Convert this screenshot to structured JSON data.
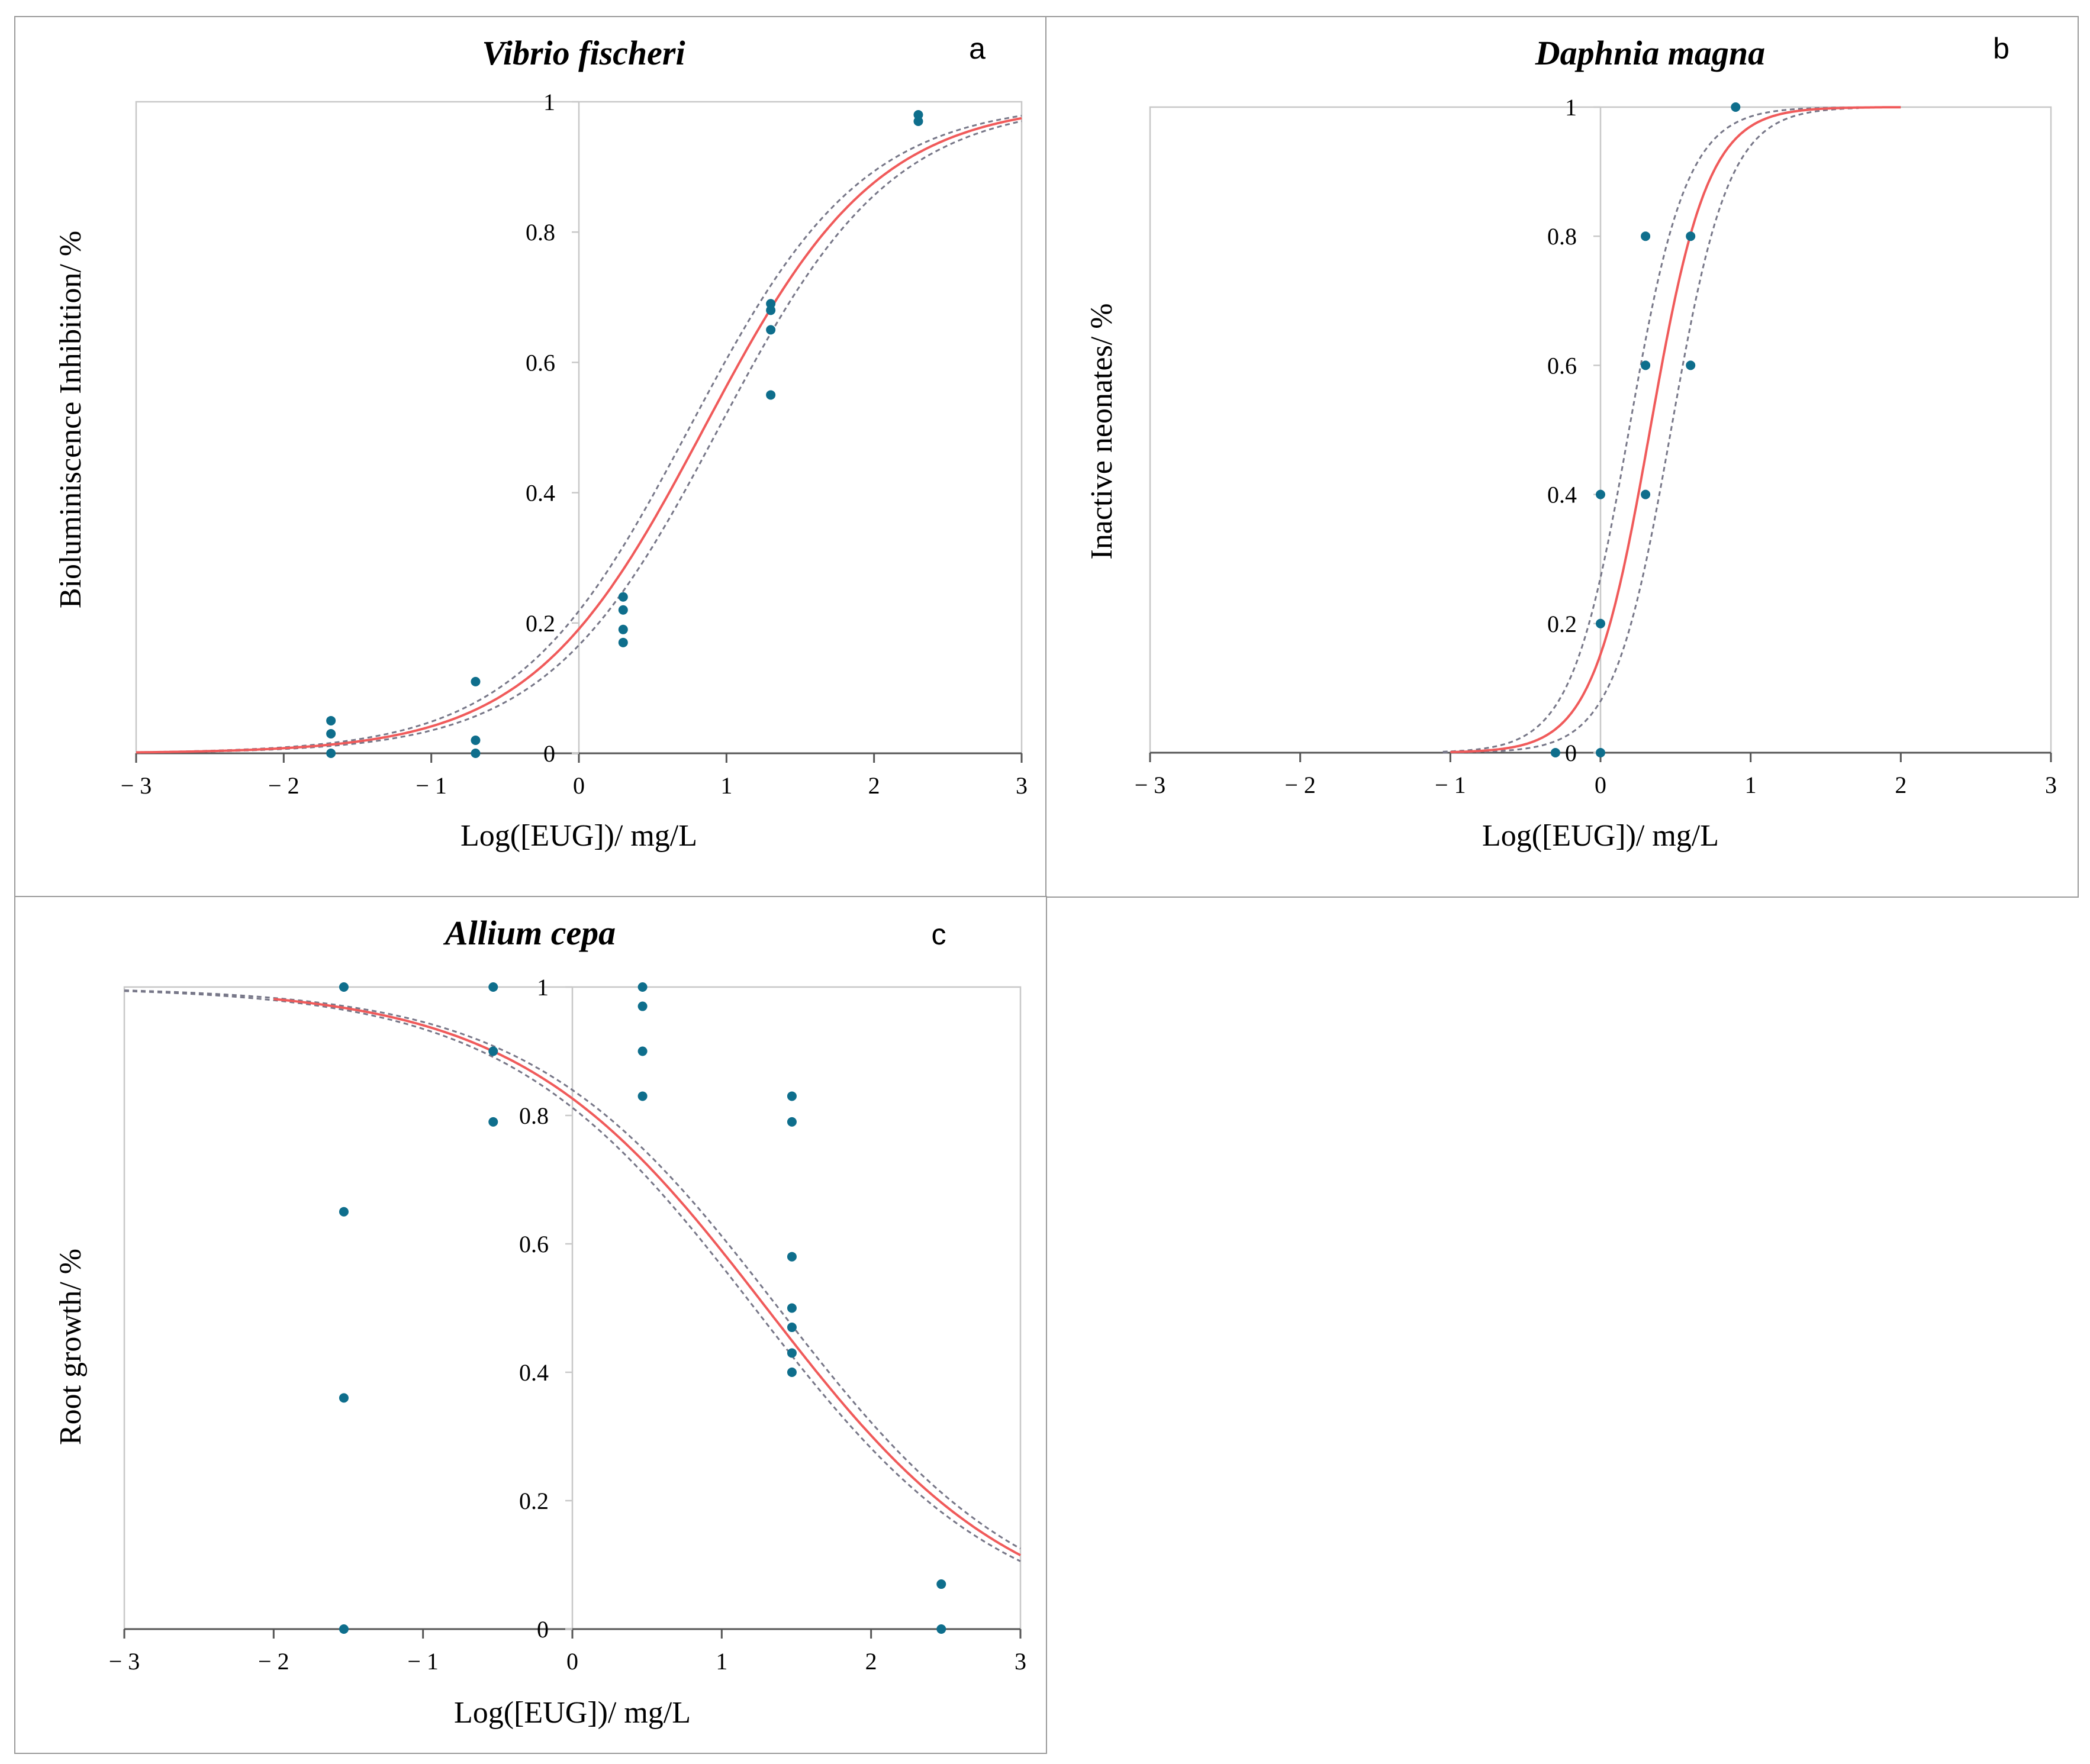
{
  "chart_data": [
    {
      "id": "a",
      "type": "scatter",
      "title": "Vibrio fischeri",
      "panel_letter": "a",
      "xlabel": "Log([EUG])/ mg/L",
      "ylabel": "Bioluminiscence Inhibition/ %",
      "xlim": [
        -3,
        3
      ],
      "ylim": [
        0,
        1
      ],
      "x_ticks": [
        -3,
        -2,
        -1,
        0,
        1,
        2,
        3
      ],
      "x_tick_labels": [
        "− 3",
        "− 2",
        "− 1",
        "0",
        "1",
        "2",
        "3"
      ],
      "y_ticks": [
        0,
        0.2,
        0.4,
        0.6,
        0.8,
        1
      ],
      "y_tick_labels": [
        "0",
        "0.2",
        "0.4",
        "0.6",
        "0.8",
        "1"
      ],
      "points": {
        "x": [
          -1.68,
          -1.68,
          -1.68,
          -0.7,
          -0.7,
          -0.7,
          0.3,
          0.3,
          0.3,
          0.3,
          1.3,
          1.3,
          1.3,
          1.3,
          2.3,
          2.3
        ],
        "y": [
          0.05,
          0.03,
          0.0,
          0.11,
          0.02,
          0.0,
          0.24,
          0.22,
          0.19,
          0.17,
          0.69,
          0.68,
          0.65,
          0.55,
          0.98,
          0.97
        ]
      },
      "fit": {
        "model": "logistic",
        "x0": 0.85,
        "slope": 1.7,
        "x_range": [
          -3,
          3
        ]
      },
      "ci_band": {
        "lower_shift": 0.1,
        "upper_shift": -0.1
      },
      "colors": {
        "fit": "#f05a5a",
        "ci": "#777788",
        "points": "#0e6e8c"
      }
    },
    {
      "id": "b",
      "type": "scatter",
      "title": "Daphnia magna",
      "panel_letter": "b",
      "xlabel": "Log([EUG])/ mg/L",
      "ylabel": "Inactive neonates/ %",
      "xlim": [
        -3,
        3
      ],
      "ylim": [
        0,
        1
      ],
      "x_ticks": [
        -3,
        -2,
        -1,
        0,
        1,
        2,
        3
      ],
      "x_tick_labels": [
        "− 3",
        "− 2",
        "− 1",
        "0",
        "1",
        "2",
        "3"
      ],
      "y_ticks": [
        0,
        0.2,
        0.4,
        0.6,
        0.8,
        1
      ],
      "y_tick_labels": [
        "0",
        "0.2",
        "0.4",
        "0.6",
        "0.8",
        "1"
      ],
      "points": {
        "x": [
          -0.3,
          0.0,
          0.0,
          0.0,
          0.3,
          0.3,
          0.3,
          0.6,
          0.6,
          0.9
        ],
        "y": [
          0.0,
          0.0,
          0.2,
          0.4,
          0.4,
          0.6,
          0.8,
          0.6,
          0.8,
          1.0
        ]
      },
      "fit": {
        "model": "logistic",
        "x0": 0.33,
        "slope": 5.2,
        "x_range": [
          -1,
          2
        ]
      },
      "ci_band": {
        "lower_shift": 0.14,
        "upper_shift": -0.14,
        "x_range": [
          -1.05,
          1.72
        ]
      },
      "colors": {
        "fit": "#f05a5a",
        "ci": "#777788",
        "points": "#0e6e8c"
      }
    },
    {
      "id": "c",
      "type": "scatter",
      "title": "Allium cepa",
      "panel_letter": "c",
      "xlabel": "Log([EUG])/ mg/L",
      "ylabel": "Root growth/ %",
      "xlim": [
        -3,
        3
      ],
      "ylim": [
        0,
        1
      ],
      "x_ticks": [
        -3,
        -2,
        -1,
        0,
        1,
        2,
        3
      ],
      "x_tick_labels": [
        "− 3",
        "− 2",
        "− 1",
        "0",
        "1",
        "2",
        "3"
      ],
      "y_ticks": [
        0,
        0.2,
        0.4,
        0.6,
        0.8,
        1
      ],
      "y_tick_labels": [
        "0",
        "0.2",
        "0.4",
        "0.6",
        "0.8",
        "1"
      ],
      "points": {
        "x": [
          -1.53,
          -1.53,
          -1.53,
          -1.53,
          -0.53,
          -0.53,
          -0.53,
          0.47,
          0.47,
          0.47,
          0.47,
          1.47,
          1.47,
          1.47,
          1.47,
          1.47,
          1.47,
          1.47,
          2.47,
          2.47
        ],
        "y": [
          1.0,
          0.65,
          0.36,
          0.0,
          1.0,
          0.9,
          0.79,
          1.0,
          0.97,
          0.9,
          0.83,
          0.83,
          0.79,
          0.58,
          0.5,
          0.47,
          0.43,
          0.4,
          0.07,
          0.0
        ]
      },
      "fit": {
        "model": "logistic-decreasing",
        "x0": 1.3,
        "slope": 1.2,
        "x_range": [
          -2,
          3
        ]
      },
      "ci_band": {
        "lower_shift": -0.08,
        "upper_shift": 0.08,
        "x_range": [
          -3,
          3
        ]
      },
      "colors": {
        "fit": "#f05a5a",
        "ci": "#777788",
        "points": "#0e6e8c"
      }
    }
  ]
}
